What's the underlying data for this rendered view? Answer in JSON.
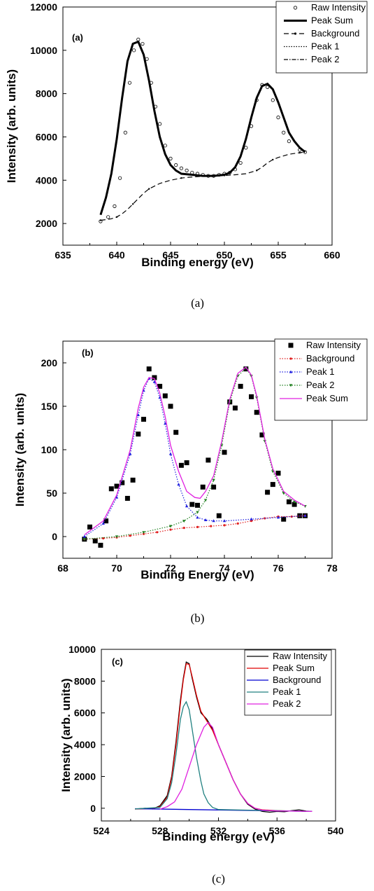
{
  "chart_data": [
    {
      "type": "line",
      "panel_label": "(a)",
      "caption": "(a)",
      "xlabel": "Binding energy (eV)",
      "ylabel": "Intensity (arb. units)",
      "xlim": [
        635,
        660
      ],
      "ylim": [
        1000,
        12000
      ],
      "xticks": [
        635,
        640,
        645,
        650,
        655,
        660
      ],
      "yticks": [
        2000,
        4000,
        6000,
        8000,
        10000,
        12000
      ],
      "legend_position": "top-right",
      "series": [
        {
          "name": "Raw Intensity",
          "style": "open-circles",
          "color": "#000000",
          "x": [
            638.5,
            639.2,
            639.8,
            640.3,
            640.8,
            641.2,
            641.6,
            642.0,
            642.4,
            642.8,
            643.2,
            643.6,
            644.0,
            644.5,
            645.0,
            645.5,
            646.0,
            646.5,
            647.0,
            647.5,
            648.0,
            648.5,
            649.0,
            649.5,
            650.0,
            650.5,
            651.0,
            651.5,
            652.0,
            652.5,
            653.0,
            653.5,
            654.0,
            654.5,
            655.0,
            655.5,
            656.0,
            657.0,
            657.5
          ],
          "y": [
            2100,
            2300,
            2800,
            4100,
            6200,
            8500,
            10000,
            10500,
            10300,
            9600,
            8500,
            7400,
            6600,
            5600,
            5000,
            4700,
            4550,
            4450,
            4350,
            4300,
            4250,
            4200,
            4200,
            4250,
            4300,
            4350,
            4500,
            4800,
            5500,
            6500,
            7700,
            8400,
            8300,
            7700,
            6900,
            6200,
            5800,
            5400,
            5300
          ]
        },
        {
          "name": "Peak Sum",
          "style": "thick-solid",
          "color": "#000000",
          "x": [
            638.5,
            639.0,
            639.5,
            640.0,
            640.5,
            641.0,
            641.5,
            642.0,
            642.5,
            643.0,
            643.5,
            644.0,
            644.5,
            645.0,
            645.5,
            646.0,
            647.0,
            648.0,
            649.0,
            650.0,
            650.5,
            651.0,
            651.5,
            652.0,
            652.5,
            653.0,
            653.5,
            654.0,
            654.5,
            655.0,
            655.5,
            656.0,
            656.5,
            657.0,
            657.5
          ],
          "y": [
            2400,
            3200,
            4300,
            5900,
            7800,
            9500,
            10300,
            10400,
            9800,
            8600,
            7200,
            6000,
            5200,
            4700,
            4450,
            4300,
            4250,
            4200,
            4200,
            4250,
            4350,
            4600,
            5100,
            5900,
            6900,
            7800,
            8350,
            8450,
            8200,
            7600,
            6900,
            6200,
            5800,
            5500,
            5300
          ]
        },
        {
          "name": "Background",
          "style": "dashed",
          "color": "#000000",
          "x": [
            638.5,
            639.0,
            639.5,
            640.0,
            640.5,
            641.0,
            641.5,
            642.0,
            642.5,
            643.0,
            644.0,
            645.0,
            646.0,
            647.0,
            648.0,
            650.0,
            651.0,
            652.0,
            653.0,
            653.5,
            654.0,
            654.5,
            655.0,
            656.0,
            657.0,
            657.5
          ],
          "y": [
            2150,
            2180,
            2220,
            2300,
            2450,
            2650,
            2900,
            3150,
            3400,
            3600,
            3850,
            4000,
            4100,
            4150,
            4180,
            4220,
            4250,
            4300,
            4450,
            4600,
            4800,
            4950,
            5050,
            5200,
            5270,
            5300
          ]
        },
        {
          "name": "Peak 1",
          "style": "dotted",
          "color": "#000000",
          "x": [],
          "y": []
        },
        {
          "name": "Peak 2",
          "style": "dash-dot",
          "color": "#000000",
          "x": [],
          "y": []
        }
      ]
    },
    {
      "type": "line",
      "panel_label": "(b)",
      "caption": "(b)",
      "xlabel": "Binding Energy (eV)",
      "ylabel": "Intensity (arb. units)",
      "xlim": [
        68,
        78
      ],
      "ylim": [
        -25,
        225
      ],
      "xticks": [
        68,
        70,
        72,
        74,
        76,
        78
      ],
      "yticks": [
        0,
        50,
        100,
        150,
        200
      ],
      "legend_position": "top-right",
      "series": [
        {
          "name": "Raw Intensity",
          "style": "filled-squares",
          "color": "#000000",
          "x": [
            68.8,
            69.0,
            69.2,
            69.4,
            69.6,
            69.8,
            70.0,
            70.2,
            70.4,
            70.6,
            70.8,
            71.0,
            71.2,
            71.4,
            71.6,
            71.8,
            72.0,
            72.2,
            72.4,
            72.6,
            72.8,
            73.0,
            73.2,
            73.4,
            73.6,
            73.8,
            74.0,
            74.2,
            74.4,
            74.6,
            74.8,
            75.0,
            75.2,
            75.4,
            75.6,
            75.8,
            76.0,
            76.2,
            76.4,
            76.6,
            76.8,
            77.0
          ],
          "y": [
            -3,
            11,
            -5,
            -10,
            18,
            55,
            58,
            62,
            44,
            65,
            118,
            135,
            193,
            183,
            173,
            162,
            150,
            120,
            82,
            85,
            37,
            36,
            57,
            88,
            57,
            24,
            97,
            155,
            148,
            173,
            193,
            161,
            143,
            117,
            51,
            60,
            73,
            20,
            40,
            37,
            24,
            24
          ]
        },
        {
          "name": "Background",
          "style": "dotted-circles",
          "color": "#e02020",
          "x": [
            68.8,
            69.5,
            70.0,
            70.5,
            71.0,
            71.5,
            72.0,
            72.5,
            73.0,
            73.5,
            74.0,
            74.5,
            75.0,
            75.5,
            76.0,
            76.5,
            77.0
          ],
          "y": [
            -3,
            -2,
            -1,
            1,
            3,
            5,
            8,
            10,
            11,
            12,
            13,
            15,
            18,
            21,
            23,
            23,
            24
          ]
        },
        {
          "name": "Peak 1",
          "style": "dotted-triangles",
          "color": "#2020e0",
          "x": [
            68.8,
            69.5,
            70.0,
            70.5,
            70.8,
            71.0,
            71.2,
            71.4,
            71.6,
            71.8,
            72.0,
            72.3,
            72.6,
            73.0,
            73.3,
            73.6,
            74.0,
            75.0,
            76.0,
            77.0
          ],
          "y": [
            0,
            15,
            45,
            95,
            140,
            168,
            182,
            178,
            160,
            130,
            95,
            60,
            35,
            22,
            19,
            18,
            18,
            20,
            22,
            24
          ]
        },
        {
          "name": "Peak 2",
          "style": "dotted-triangles-down",
          "color": "#208020",
          "x": [
            68.8,
            70.0,
            71.0,
            72.0,
            72.5,
            73.0,
            73.3,
            73.6,
            73.9,
            74.2,
            74.5,
            74.8,
            75.0,
            75.2,
            75.5,
            75.8,
            76.2,
            76.6,
            77.0
          ],
          "y": [
            -3,
            0,
            5,
            12,
            18,
            28,
            42,
            65,
            105,
            155,
            185,
            194,
            185,
            160,
            110,
            75,
            50,
            40,
            35
          ]
        },
        {
          "name": "Peak Sum",
          "style": "solid-line",
          "color": "#e020e0",
          "x": [
            68.8,
            69.5,
            70.0,
            70.5,
            70.8,
            71.0,
            71.2,
            71.4,
            71.6,
            71.8,
            72.0,
            72.3,
            72.6,
            72.9,
            73.1,
            73.3,
            73.6,
            73.9,
            74.2,
            74.5,
            74.8,
            75.0,
            75.2,
            75.5,
            75.8,
            76.2,
            76.6,
            77.0
          ],
          "y": [
            2,
            18,
            48,
            100,
            148,
            172,
            183,
            182,
            165,
            138,
            105,
            75,
            52,
            45,
            44,
            52,
            70,
            110,
            158,
            188,
            195,
            186,
            162,
            112,
            78,
            52,
            42,
            35
          ]
        }
      ]
    },
    {
      "type": "line",
      "panel_label": "(c)",
      "caption": "(c)",
      "xlabel": "Binding energy (eV)",
      "ylabel": "Intensity (arb. units)",
      "xlim": [
        524,
        540
      ],
      "ylim": [
        -800,
        10000
      ],
      "xticks": [
        524,
        528,
        532,
        536,
        540
      ],
      "yticks": [
        0,
        2000,
        4000,
        6000,
        8000,
        10000
      ],
      "legend_position": "top-right",
      "series": [
        {
          "name": "Raw Intensity",
          "style": "solid-line",
          "color": "#000000",
          "x": [
            526.3,
            527.0,
            527.5,
            528.0,
            528.5,
            528.8,
            529.1,
            529.4,
            529.6,
            529.8,
            530.0,
            530.2,
            530.5,
            530.8,
            531.2,
            531.6,
            532.0,
            532.5,
            533.0,
            533.5,
            534.0,
            534.5,
            535.0,
            535.5,
            536.0,
            536.5,
            537.0,
            537.5,
            538.0,
            538.4
          ],
          "y": [
            -50,
            0,
            -50,
            150,
            800,
            2000,
            4200,
            6800,
            8200,
            9200,
            9100,
            8200,
            7000,
            6000,
            5600,
            5000,
            4000,
            2900,
            1800,
            900,
            250,
            -50,
            -200,
            -250,
            -200,
            -220,
            -150,
            -100,
            -180,
            -200
          ]
        },
        {
          "name": "Peak Sum",
          "style": "solid-line",
          "color": "#e00000",
          "x": [
            526.3,
            527.5,
            528.0,
            528.5,
            528.8,
            529.1,
            529.4,
            529.6,
            529.8,
            530.0,
            530.2,
            530.5,
            530.8,
            531.2,
            531.6,
            532.0,
            532.5,
            533.0,
            533.5,
            534.0,
            534.5,
            535.0,
            536.0,
            537.0,
            538.4
          ],
          "y": [
            -50,
            -30,
            100,
            700,
            1900,
            4000,
            6600,
            8100,
            9100,
            9050,
            8300,
            7100,
            6100,
            5500,
            4900,
            4000,
            2900,
            1800,
            900,
            300,
            0,
            -100,
            -150,
            -180,
            -200
          ]
        },
        {
          "name": "Background",
          "style": "solid-line",
          "color": "#0000d0",
          "x": [
            526.3,
            538.4
          ],
          "y": [
            -30,
            -200
          ]
        },
        {
          "name": "Peak 1",
          "style": "solid-line",
          "color": "#208080",
          "x": [
            526.3,
            528.0,
            528.5,
            528.8,
            529.1,
            529.4,
            529.6,
            529.8,
            530.0,
            530.2,
            530.5,
            530.8,
            531.0,
            531.3,
            531.6,
            532.0,
            533.0,
            538.4
          ],
          "y": [
            -40,
            50,
            600,
            1600,
            3400,
            5600,
            6400,
            6700,
            6200,
            5000,
            3200,
            1700,
            900,
            350,
            50,
            -80,
            -100,
            -200
          ]
        },
        {
          "name": "Peak 2",
          "style": "solid-line",
          "color": "#e020e0",
          "x": [
            528.0,
            528.5,
            529.0,
            529.5,
            530.0,
            530.5,
            531.0,
            531.3,
            531.6,
            532.0,
            532.5,
            533.0,
            533.5,
            534.0,
            534.5,
            535.0,
            536.0,
            537.0,
            538.4
          ],
          "y": [
            -60,
            100,
            400,
            1200,
            2600,
            4000,
            5100,
            5400,
            5100,
            4000,
            2900,
            1800,
            900,
            300,
            0,
            -120,
            -170,
            -180,
            -200
          ]
        }
      ]
    }
  ]
}
